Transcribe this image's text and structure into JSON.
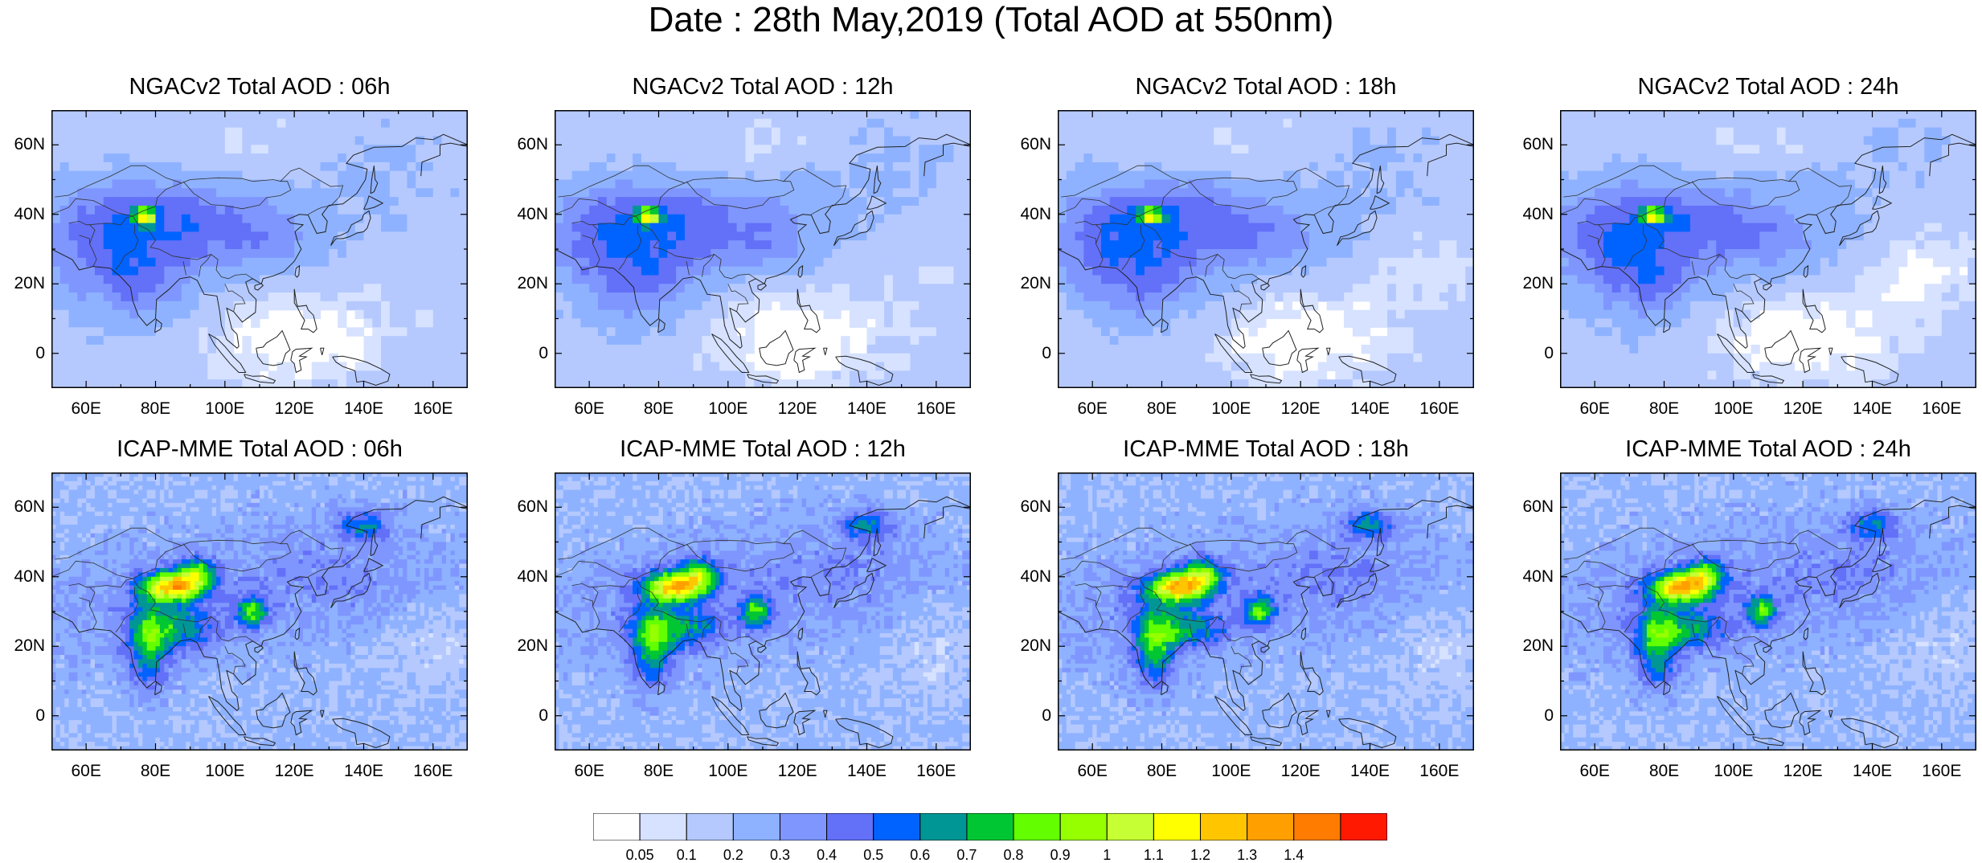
{
  "title": "Date : 28th May,2019 (Total AOD at 550nm)",
  "map_extent": {
    "lon": [
      50,
      170
    ],
    "lat": [
      -10,
      70
    ]
  },
  "lat_ticks": [
    0,
    20,
    40,
    60
  ],
  "lat_labels": [
    "0",
    "20N",
    "40N",
    "60N"
  ],
  "lon_ticks": [
    60,
    80,
    100,
    120,
    140,
    160
  ],
  "lon_labels": [
    "60E",
    "80E",
    "100E",
    "120E",
    "140E",
    "160E"
  ],
  "panels": [
    {
      "title": "NGACv2 Total AOD : 06h",
      "model": "NGACv2",
      "hour": 6
    },
    {
      "title": "NGACv2 Total AOD : 12h",
      "model": "NGACv2",
      "hour": 12
    },
    {
      "title": "NGACv2 Total AOD : 18h",
      "model": "NGACv2",
      "hour": 18
    },
    {
      "title": "NGACv2 Total AOD : 24h",
      "model": "NGACv2",
      "hour": 24
    },
    {
      "title": "ICAP-MME Total AOD : 06h",
      "model": "ICAP-MME",
      "hour": 6
    },
    {
      "title": "ICAP-MME Total AOD : 12h",
      "model": "ICAP-MME",
      "hour": 12
    },
    {
      "title": "ICAP-MME Total AOD : 18h",
      "model": "ICAP-MME",
      "hour": 18
    },
    {
      "title": "ICAP-MME Total AOD : 24h",
      "model": "ICAP-MME",
      "hour": 24
    }
  ],
  "colorbar": {
    "colors": [
      "#ffffff",
      "#d6e2ff",
      "#b5c9ff",
      "#8eb2ff",
      "#7f96ff",
      "#6370f8",
      "#0063ff",
      "#009696",
      "#00c633",
      "#63ff00",
      "#96ff00",
      "#c6ff33",
      "#ffff00",
      "#ffc600",
      "#ffa000",
      "#ff7c00",
      "#ff1900"
    ],
    "labels": [
      "0.05",
      "0.1",
      "0.2",
      "0.3",
      "0.4",
      "0.5",
      "0.6",
      "0.7",
      "0.8",
      "0.9",
      "1",
      "1.1",
      "1.2",
      "1.3",
      "1.4"
    ]
  }
}
